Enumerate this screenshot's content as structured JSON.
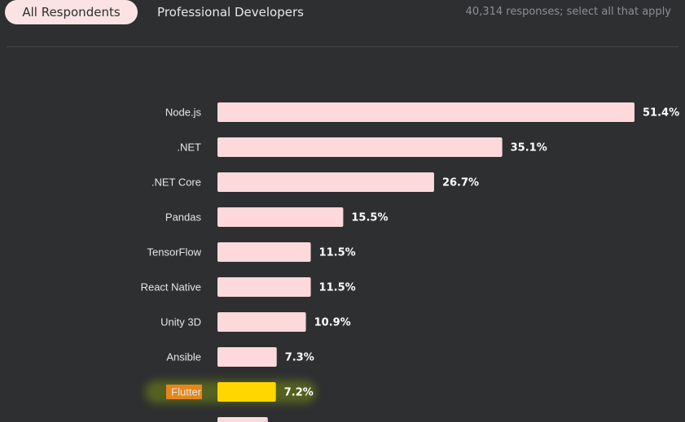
{
  "tabs": [
    {
      "label": "All Respondents",
      "active": true
    },
    {
      "label": "Professional Developers",
      "active": false
    }
  ],
  "responses_text": "40,314 responses; select all that apply",
  "colors": {
    "background": "#2e2f31",
    "bar": "#fdd9db",
    "highlight_bar": "#ffd600",
    "highlight_glow": "#5c6b1a",
    "highlight_label_bg": "#e5861a",
    "highlight_value": "#f6f14a"
  },
  "chart_data": {
    "type": "bar",
    "orientation": "horizontal",
    "title": "",
    "xlabel": "",
    "ylabel": "",
    "xlim": [
      0,
      51.4
    ],
    "unit": "%",
    "categories": [
      "Node.js",
      ".NET",
      ".NET Core",
      "Pandas",
      "TensorFlow",
      "React Native",
      "Unity 3D",
      "Ansible",
      "Flutter"
    ],
    "values": [
      51.4,
      35.1,
      26.7,
      15.5,
      11.5,
      11.5,
      10.9,
      7.3,
      7.2
    ],
    "value_labels": [
      "51.4%",
      "35.1%",
      "26.7%",
      "15.5%",
      "11.5%",
      "11.5%",
      "10.9%",
      "7.3%",
      "7.2%"
    ],
    "highlighted": "Flutter",
    "partial_next_value": 6.2
  }
}
